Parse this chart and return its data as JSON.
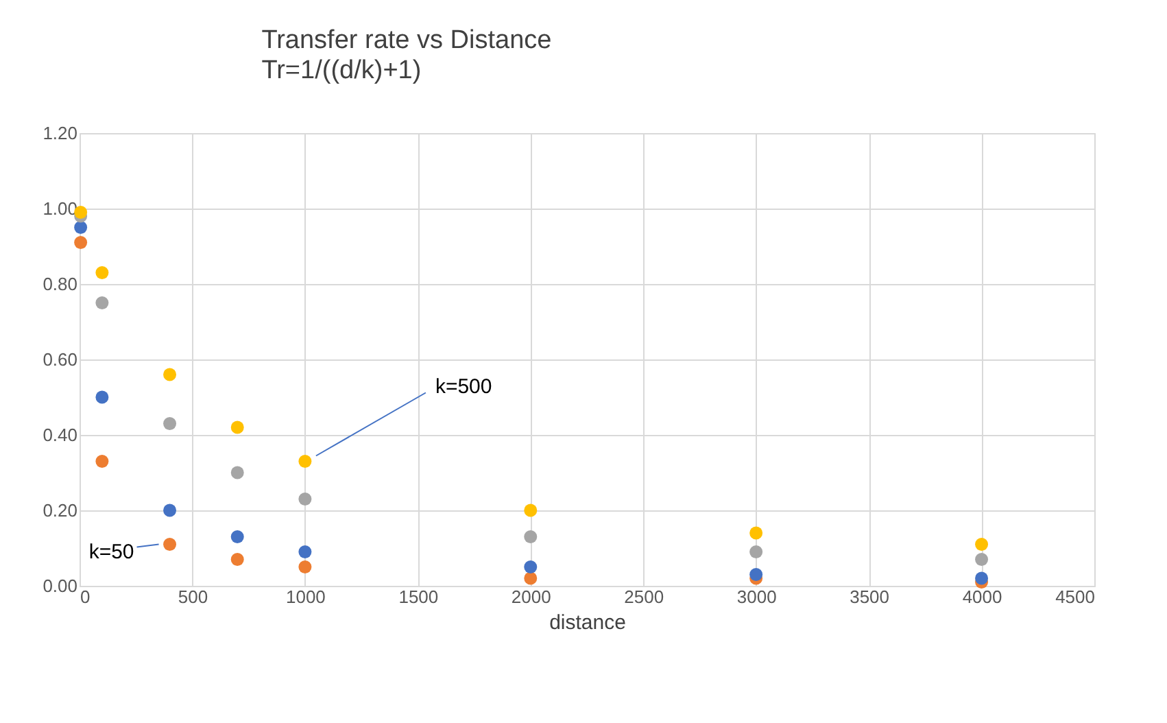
{
  "chart_data": {
    "type": "scatter",
    "title": "Transfer rate vs Distance",
    "subtitle": "Tr=1/((d/k)+1)",
    "xlabel": "distance",
    "x": [
      5,
      100,
      400,
      700,
      1000,
      2000,
      3000,
      4000
    ],
    "series": [
      {
        "color": "#ed7d31",
        "values": [
          0.91,
          0.33,
          0.11,
          0.07,
          0.05,
          0.02,
          0.02,
          0.01
        ]
      },
      {
        "color": "#4472c4",
        "values": [
          0.95,
          0.5,
          0.2,
          0.13,
          0.09,
          0.05,
          0.03,
          0.02
        ]
      },
      {
        "color": "#a5a5a5",
        "values": [
          0.98,
          0.75,
          0.43,
          0.3,
          0.23,
          0.13,
          0.09,
          0.07
        ]
      },
      {
        "color": "#ffc000",
        "values": [
          0.99,
          0.83,
          0.56,
          0.42,
          0.33,
          0.2,
          0.14,
          0.11
        ]
      }
    ],
    "annotations": [
      {
        "text": "k=500",
        "x": 1000,
        "y": 0.33
      },
      {
        "text": "k=50",
        "x": 400,
        "y": 0.11
      }
    ],
    "xlim": [
      0,
      4500
    ],
    "xticks": [
      0,
      500,
      1000,
      1500,
      2000,
      2500,
      3000,
      3500,
      4000,
      4500
    ],
    "ylim": [
      0,
      1.2
    ],
    "yticks": [
      {
        "value": 0,
        "label": "0.00"
      },
      {
        "value": 0.2,
        "label": "0.20"
      },
      {
        "value": 0.4,
        "label": "0.40"
      },
      {
        "value": 0.6,
        "label": "0.60"
      },
      {
        "value": 0.8,
        "label": "0.80"
      },
      {
        "value": 1.0,
        "label": "1.00"
      },
      {
        "value": 1.2,
        "label": "1.20"
      }
    ],
    "grid": true,
    "marker": "circle",
    "legend": false
  }
}
